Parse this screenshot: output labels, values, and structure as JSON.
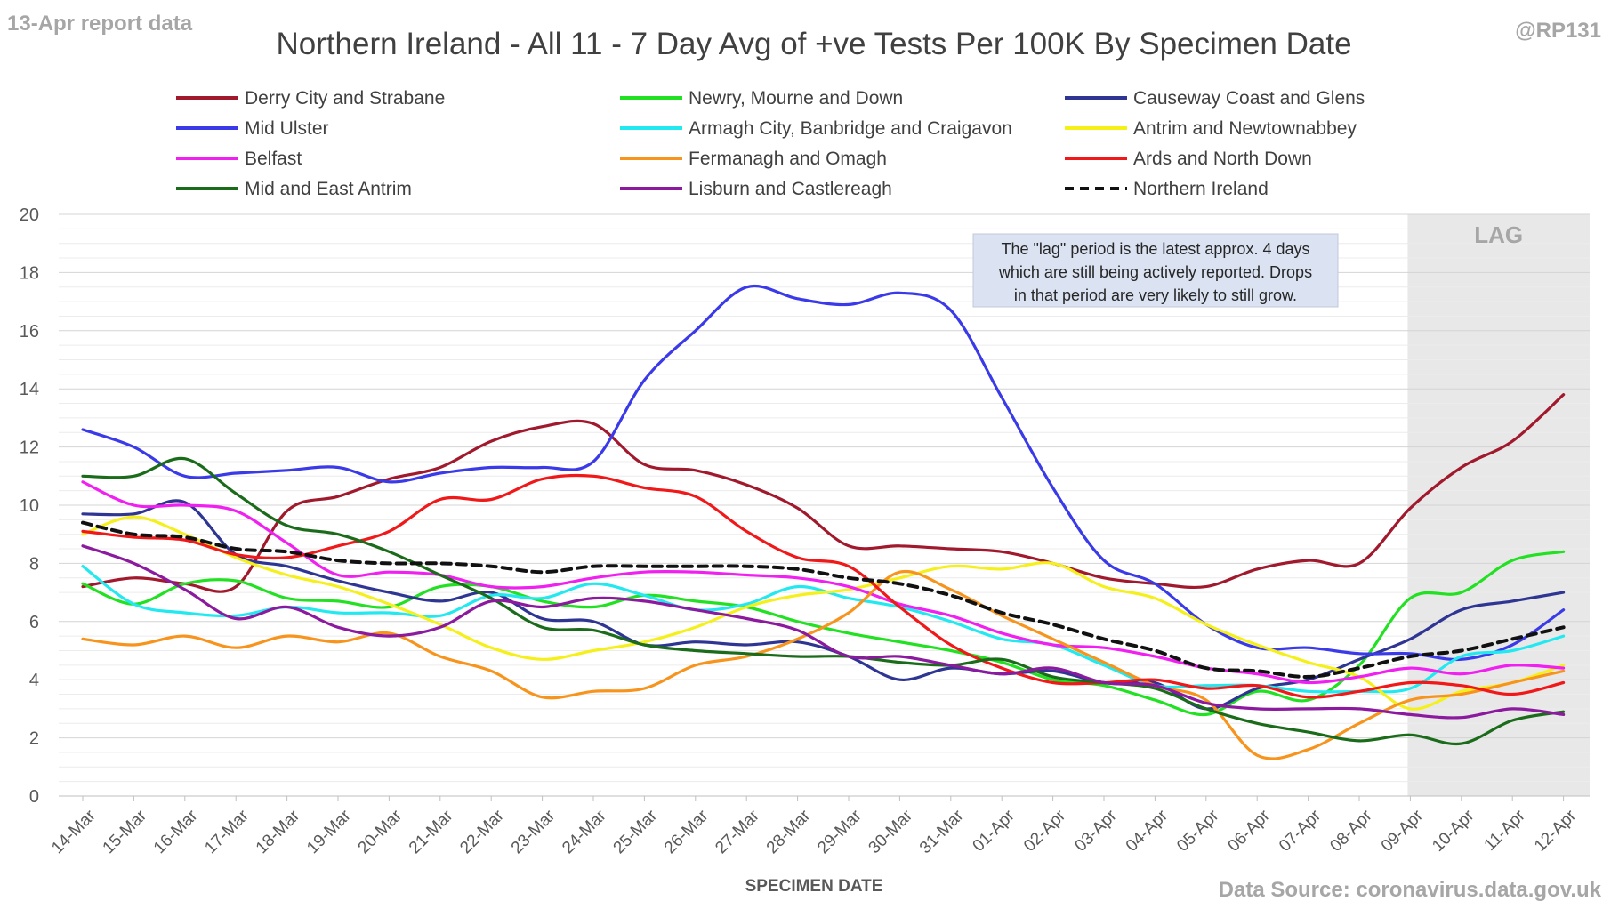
{
  "corner_left": "13-Apr report data",
  "corner_right": "@RP131",
  "source": "Data Source: coronavirus.data.gov.uk",
  "note_lines": [
    "The \"lag\" period is the latest approx. 4 days",
    "which are still being actively reported.  Drops",
    "in that period are very likely to still grow."
  ],
  "chart_data": {
    "type": "line",
    "title": "Northern Ireland - All 11 - 7 Day Avg of +ve Tests Per 100K By Specimen Date",
    "xlabel": "SPECIMEN DATE",
    "ylabel": "",
    "ylim": [
      0,
      20
    ],
    "yticks": [
      0,
      2,
      4,
      6,
      8,
      10,
      12,
      14,
      16,
      18,
      20
    ],
    "grid": true,
    "legend_position": "top",
    "lag_label": "LAG",
    "lag_start": "09-Apr",
    "categories": [
      "14-Mar",
      "15-Mar",
      "16-Mar",
      "17-Mar",
      "18-Mar",
      "19-Mar",
      "20-Mar",
      "21-Mar",
      "22-Mar",
      "23-Mar",
      "24-Mar",
      "25-Mar",
      "26-Mar",
      "27-Mar",
      "28-Mar",
      "29-Mar",
      "30-Mar",
      "31-Mar",
      "01-Apr",
      "02-Apr",
      "03-Apr",
      "04-Apr",
      "05-Apr",
      "06-Apr",
      "07-Apr",
      "08-Apr",
      "09-Apr",
      "10-Apr",
      "11-Apr",
      "12-Apr"
    ],
    "series": [
      {
        "name": "Derry City and Strabane",
        "color": "#a0192d",
        "dash": false,
        "values": [
          7.2,
          7.5,
          7.3,
          7.2,
          9.8,
          10.3,
          10.9,
          11.3,
          12.2,
          12.7,
          12.8,
          11.4,
          11.2,
          10.7,
          9.9,
          8.6,
          8.6,
          8.5,
          8.4,
          8.0,
          7.5,
          7.3,
          7.2,
          7.8,
          8.1,
          8.0,
          9.9,
          11.3,
          12.2,
          13.8
        ]
      },
      {
        "name": "Newry, Mourne and Down",
        "color": "#22e022",
        "dash": false,
        "values": [
          7.3,
          6.6,
          7.3,
          7.4,
          6.8,
          6.7,
          6.5,
          7.2,
          7.2,
          6.7,
          6.5,
          6.9,
          6.7,
          6.5,
          6.0,
          5.6,
          5.3,
          5.0,
          4.6,
          4.0,
          3.8,
          3.3,
          2.8,
          3.6,
          3.3,
          4.5,
          6.8,
          7.0,
          8.1,
          8.4
        ]
      },
      {
        "name": "Causeway Coast and Glens",
        "color": "#2e3592",
        "dash": false,
        "values": [
          9.7,
          9.7,
          10.1,
          8.3,
          7.9,
          7.4,
          7.0,
          6.7,
          7.0,
          6.1,
          6.0,
          5.2,
          5.3,
          5.2,
          5.3,
          4.8,
          4.0,
          4.4,
          4.2,
          4.3,
          3.9,
          3.9,
          3.0,
          3.7,
          4.0,
          4.7,
          5.4,
          6.4,
          6.7,
          7.0
        ]
      },
      {
        "name": "Mid Ulster",
        "color": "#3a3ae8",
        "dash": false,
        "values": [
          12.6,
          12.0,
          11.0,
          11.1,
          11.2,
          11.3,
          10.8,
          11.1,
          11.3,
          11.3,
          11.5,
          14.3,
          16.0,
          17.5,
          17.1,
          16.9,
          17.3,
          16.7,
          13.7,
          10.6,
          8.1,
          7.3,
          5.9,
          5.1,
          5.1,
          4.9,
          4.9,
          4.7,
          5.2,
          6.4
        ]
      },
      {
        "name": "Armagh City, Banbridge and Craigavon",
        "color": "#22e8f0",
        "dash": false,
        "values": [
          7.9,
          6.6,
          6.3,
          6.2,
          6.5,
          6.3,
          6.3,
          6.2,
          6.9,
          6.8,
          7.3,
          6.9,
          6.4,
          6.6,
          7.2,
          6.8,
          6.5,
          6.0,
          5.4,
          5.2,
          4.5,
          3.8,
          3.8,
          3.8,
          3.6,
          3.6,
          3.7,
          4.8,
          5.0,
          5.5
        ]
      },
      {
        "name": "Antrim and Newtownabbey",
        "color": "#f5ef1a",
        "dash": false,
        "values": [
          9.0,
          9.6,
          9.0,
          8.2,
          7.6,
          7.2,
          6.6,
          5.9,
          5.1,
          4.7,
          5.0,
          5.3,
          5.8,
          6.5,
          6.9,
          7.1,
          7.5,
          7.9,
          7.8,
          8.0,
          7.2,
          6.8,
          5.9,
          5.2,
          4.6,
          4.1,
          3.0,
          3.6,
          3.9,
          4.5
        ]
      },
      {
        "name": "Belfast",
        "color": "#f020f0",
        "dash": false,
        "values": [
          10.8,
          10.0,
          10.0,
          9.8,
          8.7,
          7.6,
          7.7,
          7.6,
          7.2,
          7.2,
          7.5,
          7.7,
          7.7,
          7.6,
          7.5,
          7.2,
          6.6,
          6.2,
          5.6,
          5.2,
          5.1,
          4.8,
          4.4,
          4.2,
          3.9,
          4.1,
          4.4,
          4.2,
          4.5,
          4.4
        ]
      },
      {
        "name": "Fermanagh and Omagh",
        "color": "#f7941d",
        "dash": false,
        "values": [
          5.4,
          5.2,
          5.5,
          5.1,
          5.5,
          5.3,
          5.6,
          4.8,
          4.3,
          3.4,
          3.6,
          3.7,
          4.5,
          4.8,
          5.4,
          6.3,
          7.7,
          7.1,
          6.2,
          5.4,
          4.6,
          3.8,
          3.3,
          1.4,
          1.6,
          2.5,
          3.3,
          3.5,
          3.9,
          4.3
        ]
      },
      {
        "name": "Ards and North Down",
        "color": "#f01818",
        "dash": false,
        "values": [
          9.1,
          8.9,
          8.8,
          8.3,
          8.2,
          8.6,
          9.1,
          10.2,
          10.2,
          10.9,
          11.0,
          10.6,
          10.3,
          9.1,
          8.2,
          7.9,
          6.5,
          5.2,
          4.4,
          3.9,
          3.9,
          4.0,
          3.7,
          3.8,
          3.4,
          3.6,
          3.9,
          3.8,
          3.5,
          3.9
        ]
      },
      {
        "name": "Mid and East Antrim",
        "color": "#1a6b1a",
        "dash": false,
        "values": [
          11.0,
          11.0,
          11.6,
          10.4,
          9.3,
          9.0,
          8.4,
          7.6,
          6.8,
          5.8,
          5.7,
          5.2,
          5.0,
          4.9,
          4.8,
          4.8,
          4.6,
          4.5,
          4.7,
          4.1,
          3.9,
          3.7,
          3.0,
          2.5,
          2.2,
          1.9,
          2.1,
          1.8,
          2.6,
          2.9
        ]
      },
      {
        "name": "Lisburn and Castlereagh",
        "color": "#8b1a9e",
        "dash": false,
        "values": [
          8.6,
          8.0,
          7.1,
          6.1,
          6.5,
          5.8,
          5.5,
          5.8,
          6.7,
          6.5,
          6.8,
          6.7,
          6.4,
          6.1,
          5.7,
          4.8,
          4.8,
          4.5,
          4.2,
          4.4,
          3.9,
          3.8,
          3.2,
          3.0,
          3.0,
          3.0,
          2.8,
          2.7,
          3.0,
          2.8
        ]
      },
      {
        "name": "Northern Ireland",
        "color": "#111111",
        "dash": true,
        "values": [
          9.4,
          9.0,
          8.9,
          8.5,
          8.4,
          8.1,
          8.0,
          8.0,
          7.9,
          7.7,
          7.9,
          7.9,
          7.9,
          7.9,
          7.8,
          7.5,
          7.3,
          6.9,
          6.3,
          5.9,
          5.4,
          5.0,
          4.4,
          4.3,
          4.1,
          4.4,
          4.8,
          5.0,
          5.4,
          5.8
        ]
      }
    ]
  }
}
